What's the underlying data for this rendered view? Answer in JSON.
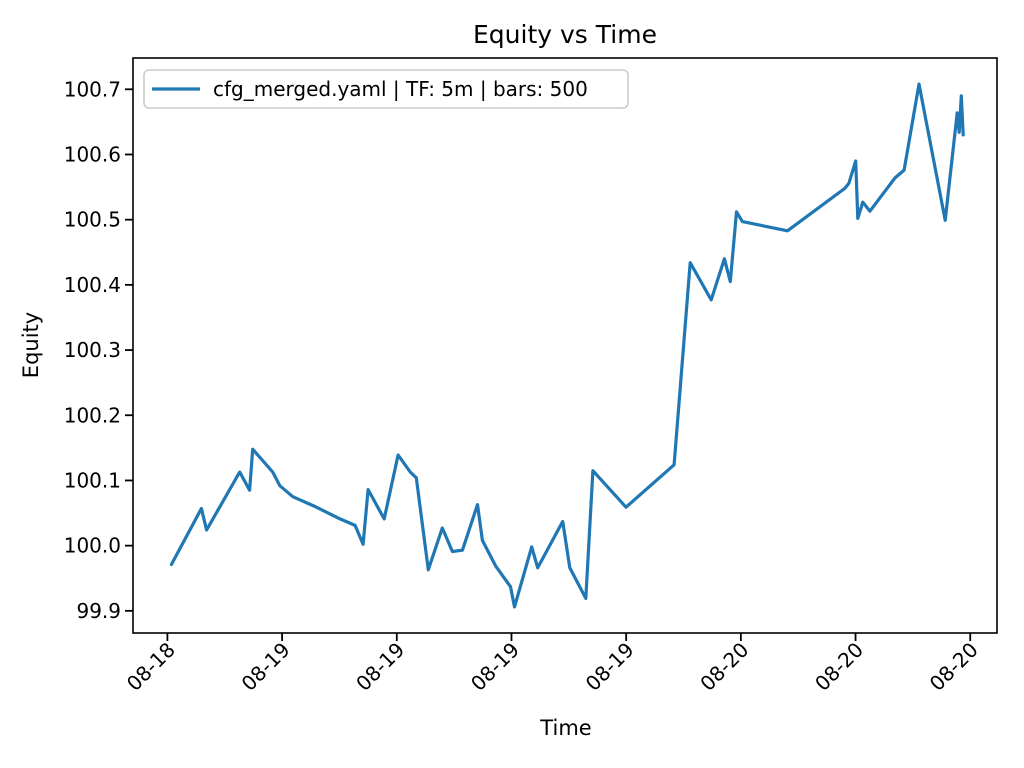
{
  "figure": {
    "title": "Equity vs Time",
    "xlabel": "Time",
    "ylabel": "Equity",
    "legend": {
      "label": "cfg_merged.yaml | TF: 5m | bars: 500",
      "position": "upper left"
    },
    "colors": {
      "line": "#1f77b4",
      "spine": "#000000",
      "legend_border": "#cccccc",
      "background": "#ffffff"
    }
  },
  "chart_data": {
    "type": "line",
    "title": "Equity vs Time",
    "xlabel": "Time",
    "ylabel": "Equity",
    "grid": false,
    "legend_position": "upper left",
    "xlim": [
      -1.8,
      43.4
    ],
    "ylim": [
      99.866,
      100.748
    ],
    "xticks": {
      "positions": [
        0,
        6,
        12,
        18,
        24,
        30,
        36,
        42
      ],
      "labels": [
        "08-18",
        "08-19",
        "08-19",
        "08-19",
        "08-19",
        "08-20",
        "08-20",
        "08-20"
      ],
      "rotation": 45
    },
    "yticks": {
      "positions": [
        99.9,
        100.0,
        100.1,
        100.2,
        100.3,
        100.4,
        100.5,
        100.6,
        100.7
      ],
      "labels": [
        "99.9",
        "100.0",
        "100.1",
        "100.2",
        "100.3",
        "100.4",
        "100.5",
        "100.6",
        "100.7"
      ]
    },
    "series": [
      {
        "name": "cfg_merged.yaml | TF: 5m | bars: 500",
        "color": "#1f77b4",
        "x": [
          0.21,
          1.78,
          2.05,
          3.78,
          4.3,
          4.46,
          5.51,
          5.88,
          6.56,
          7.72,
          9.03,
          9.82,
          10.24,
          10.5,
          11.34,
          12.07,
          12.7,
          13.02,
          13.65,
          14.38,
          14.91,
          15.43,
          16.22,
          16.48,
          17.17,
          17.95,
          18.16,
          19.06,
          19.37,
          20.68,
          21.05,
          21.89,
          22.26,
          23.99,
          26.51,
          27.35,
          28.45,
          29.14,
          29.45,
          29.77,
          30.08,
          32.44,
          35.44,
          35.65,
          36.01,
          36.12,
          36.38,
          36.75,
          38.06,
          38.54,
          39.32,
          40.69,
          41.32,
          41.42,
          41.53,
          41.63
        ],
        "y": [
          99.971,
          100.057,
          100.024,
          100.113,
          100.085,
          100.148,
          100.113,
          100.092,
          100.075,
          100.06,
          100.041,
          100.031,
          100.002,
          100.086,
          100.041,
          100.139,
          100.113,
          100.104,
          99.963,
          100.027,
          99.991,
          99.993,
          100.063,
          100.008,
          99.969,
          99.937,
          99.906,
          99.998,
          99.966,
          100.037,
          99.966,
          99.919,
          100.115,
          100.059,
          100.124,
          100.434,
          100.377,
          100.44,
          100.405,
          100.512,
          100.497,
          100.483,
          100.548,
          100.556,
          100.59,
          100.502,
          100.527,
          100.513,
          100.564,
          100.576,
          100.708,
          100.499,
          100.664,
          100.634,
          100.69,
          100.63
        ]
      }
    ]
  }
}
